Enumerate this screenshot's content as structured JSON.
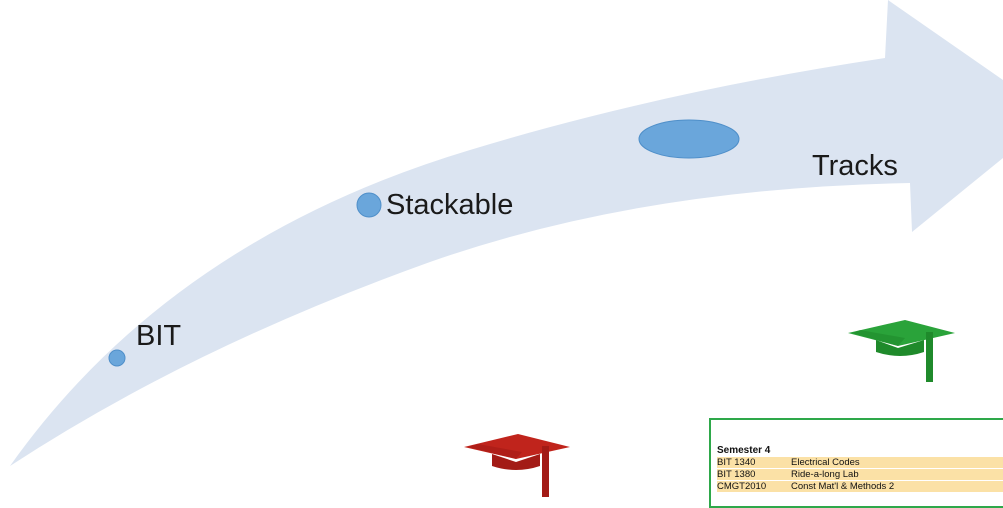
{
  "labels": {
    "bit": "BIT",
    "stackable": "Stackable",
    "tracks": "Tracks"
  },
  "colors": {
    "arrow": "#dbe4f1",
    "dot": "#6aa6db",
    "dot_stroke": "#4f8fc9",
    "cap_green": "#1f8a2b",
    "cap_red": "#a31b16",
    "panel_border": "#2ea84a",
    "row_fill": "#fbe1a6"
  },
  "icons": {
    "green_cap": "graduation-cap-icon",
    "red_cap": "graduation-cap-icon"
  },
  "semester": {
    "title": "Semester 4",
    "courses": [
      {
        "code": "BIT 1340",
        "name": "Electrical Codes"
      },
      {
        "code": "BIT 1380",
        "name": "Ride-a-long Lab"
      },
      {
        "code": "CMGT2010",
        "name": "Const Mat'l & Methods 2"
      }
    ]
  }
}
